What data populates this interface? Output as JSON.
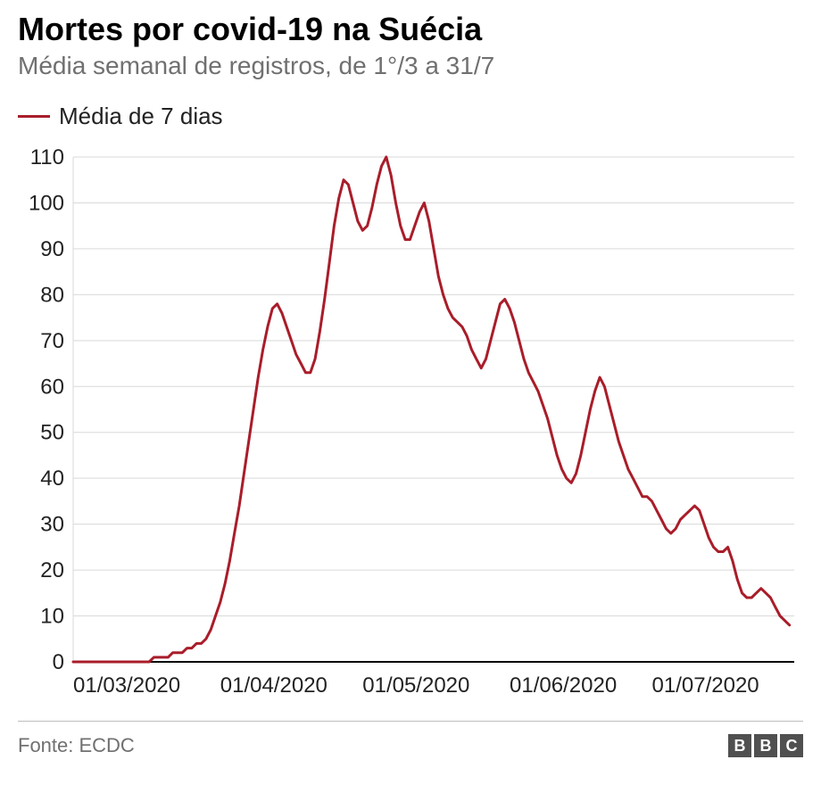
{
  "header": {
    "title": "Mortes por covid-19 na Suécia",
    "subtitle": "Média semanal de registros, de 1°/3 a 31/7"
  },
  "legend": {
    "label": "Média de 7 dias",
    "color": "#a91d2a"
  },
  "chart": {
    "type": "line",
    "background_color": "#ffffff",
    "grid_color": "#d9d9d9",
    "axis_color": "#000000",
    "line_color": "#a91d2a",
    "line_width": 3,
    "tick_label_color": "#222222",
    "tick_label_fontsize": 24,
    "y_axis": {
      "min": 0,
      "max": 110,
      "ticks": [
        0,
        10,
        20,
        30,
        40,
        50,
        60,
        70,
        80,
        90,
        100,
        110
      ]
    },
    "x_axis": {
      "min": 0,
      "max": 152,
      "tick_positions": [
        0,
        31,
        61,
        92,
        122
      ],
      "tick_labels": [
        "01/03/2020",
        "01/04/2020",
        "01/05/2020",
        "01/06/2020",
        "01/07/2020"
      ]
    },
    "series": {
      "name": "Média de 7 dias",
      "values": [
        0,
        0,
        0,
        0,
        0,
        0,
        0,
        0,
        0,
        0,
        0,
        0,
        0,
        0,
        0,
        0,
        0,
        1,
        1,
        1,
        1,
        2,
        2,
        2,
        3,
        3,
        4,
        4,
        5,
        7,
        10,
        13,
        17,
        22,
        28,
        34,
        41,
        48,
        55,
        62,
        68,
        73,
        77,
        78,
        76,
        73,
        70,
        67,
        65,
        63,
        63,
        66,
        72,
        79,
        87,
        95,
        101,
        105,
        104,
        100,
        96,
        94,
        95,
        99,
        104,
        108,
        110,
        106,
        100,
        95,
        92,
        92,
        95,
        98,
        100,
        96,
        90,
        84,
        80,
        77,
        75,
        74,
        73,
        71,
        68,
        66,
        64,
        66,
        70,
        74,
        78,
        79,
        77,
        74,
        70,
        66,
        63,
        61,
        59,
        56,
        53,
        49,
        45,
        42,
        40,
        39,
        41,
        45,
        50,
        55,
        59,
        62,
        60,
        56,
        52,
        48,
        45,
        42,
        40,
        38,
        36,
        36,
        35,
        33,
        31,
        29,
        28,
        29,
        31,
        32,
        33,
        34,
        33,
        30,
        27,
        25,
        24,
        24,
        25,
        22,
        18,
        15,
        14,
        14,
        15,
        16,
        15,
        14,
        12,
        10,
        9,
        8
      ]
    }
  },
  "footer": {
    "source": "Fonte: ECDC",
    "logo_letters": [
      "B",
      "B",
      "C"
    ],
    "logo_box_color": "#505050",
    "logo_text_color": "#ffffff"
  }
}
